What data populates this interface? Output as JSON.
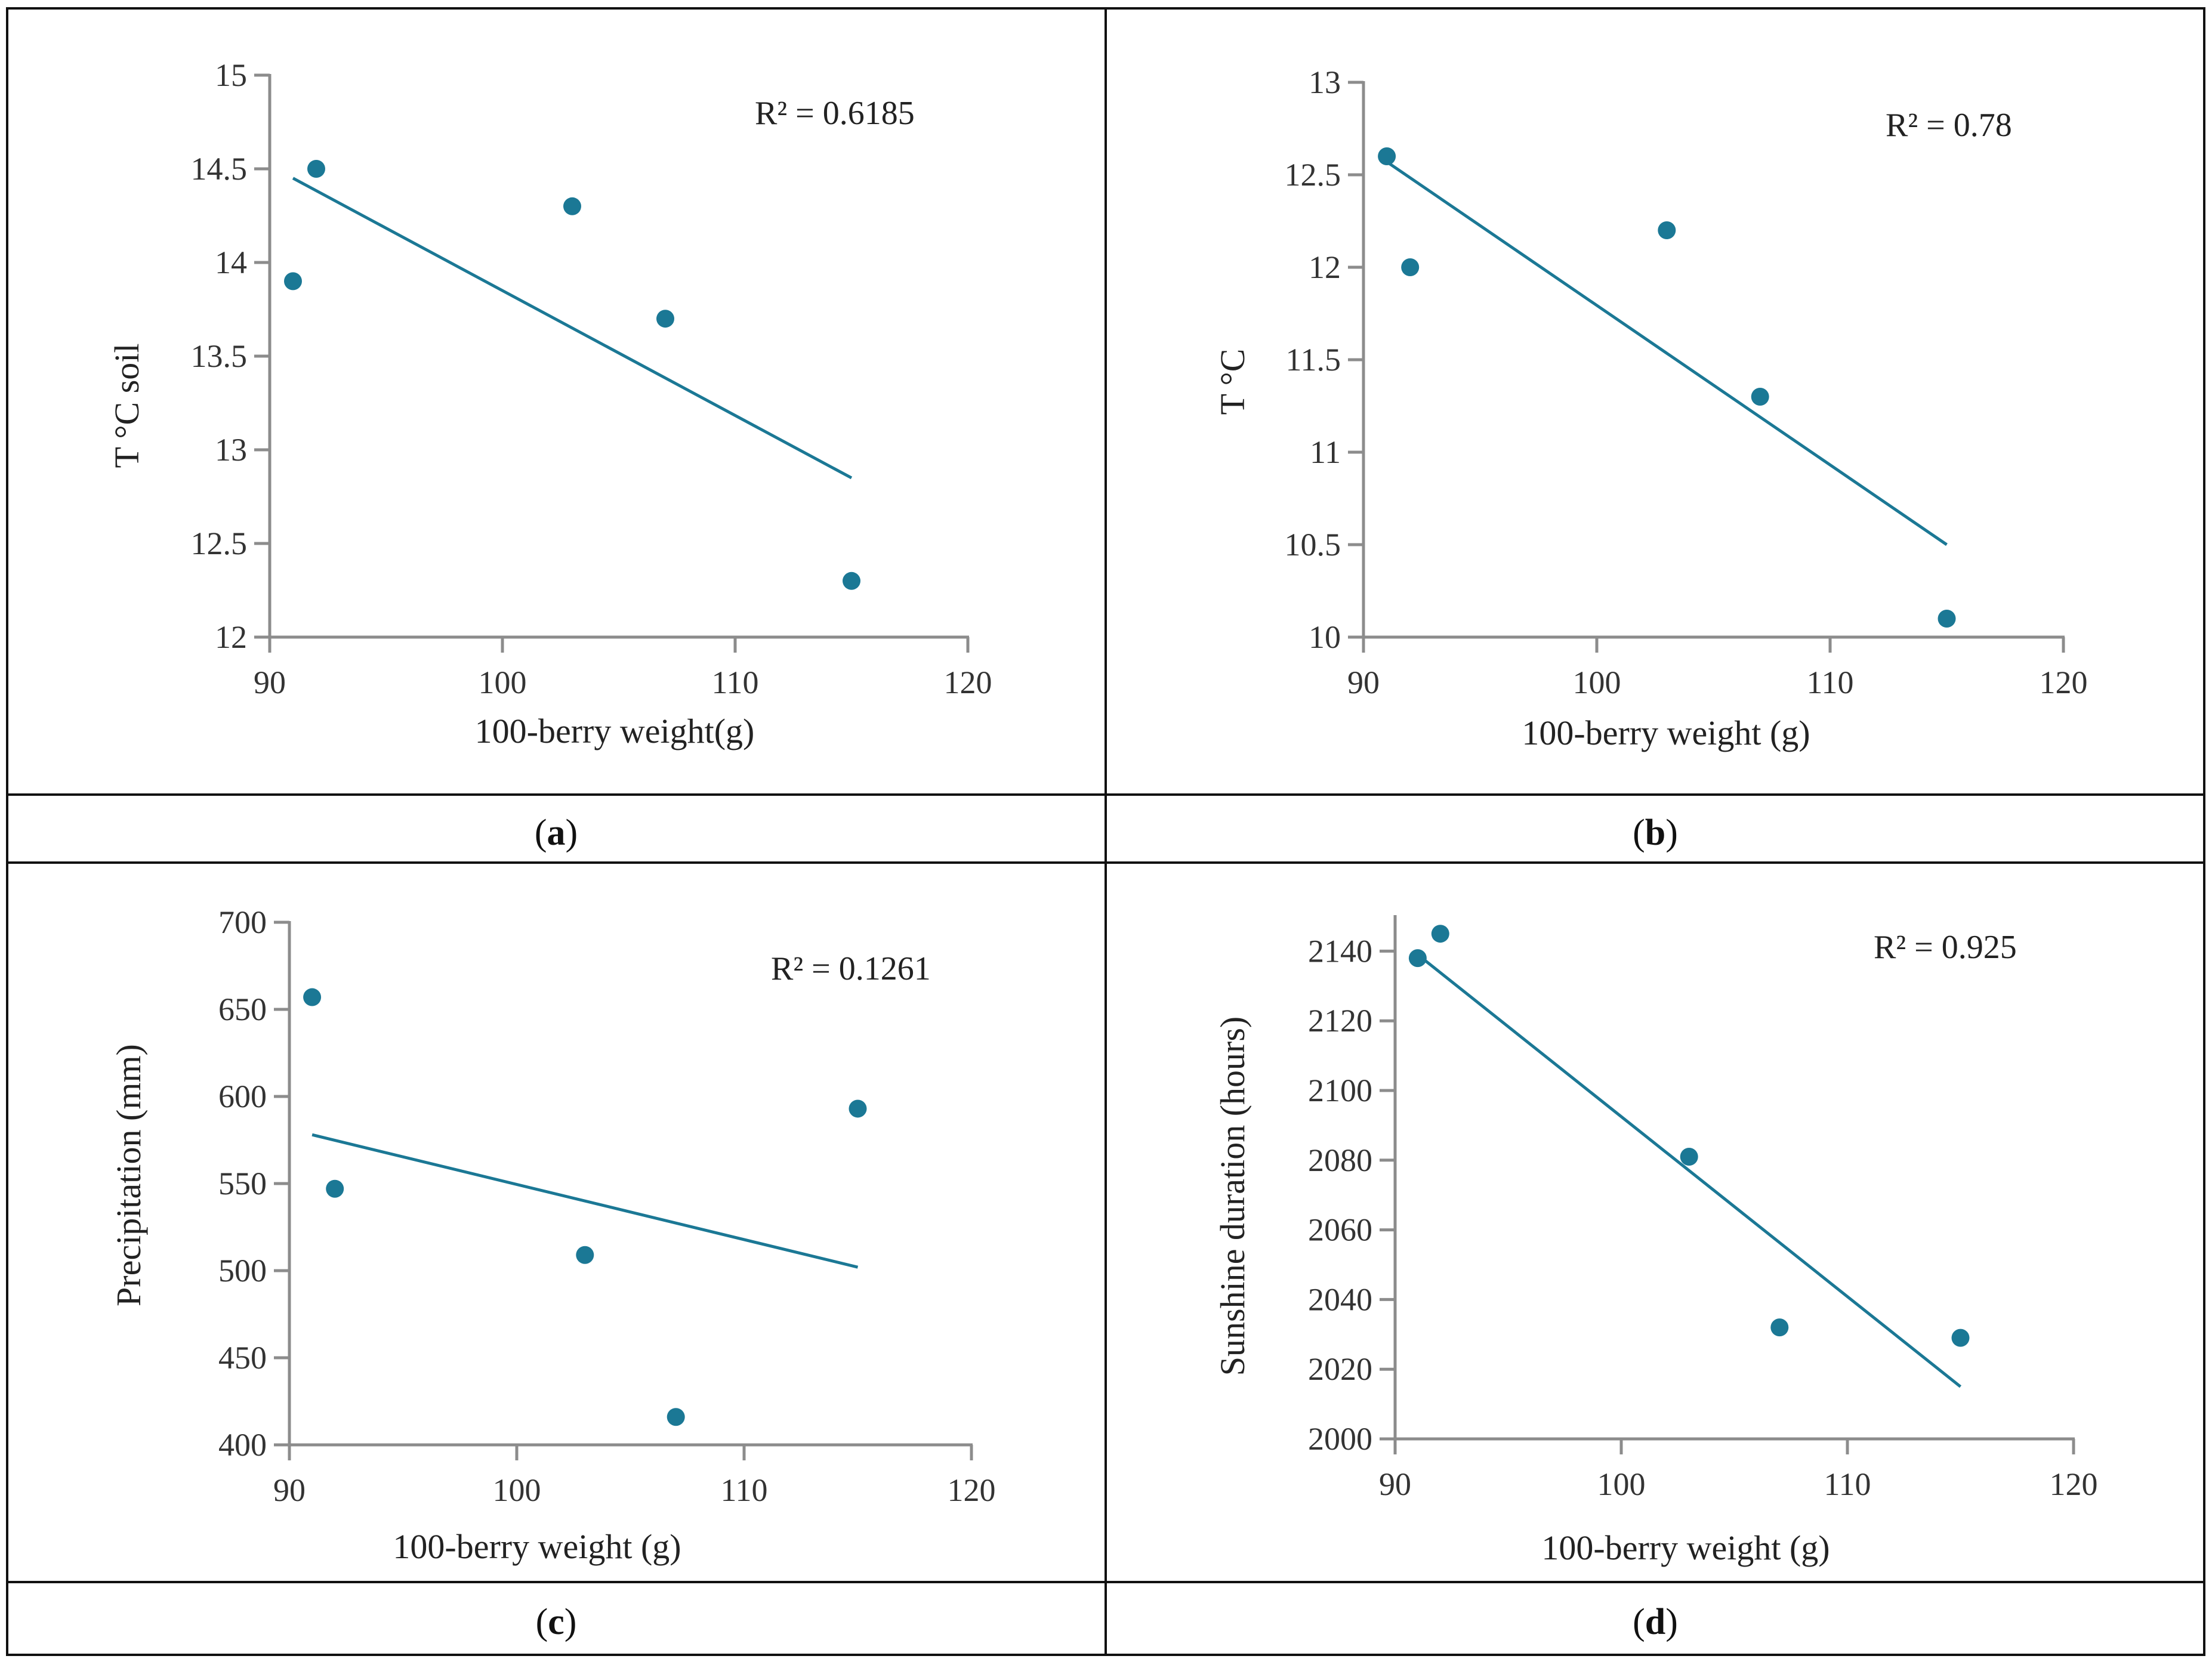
{
  "colors": {
    "series": "#1B7895",
    "axis": "#8C8C8C",
    "frame": "#111111"
  },
  "chart_data": [
    {
      "id": "a",
      "type": "scatter",
      "caption_letter": "a",
      "xlabel": "100-berry weight(g)",
      "ylabel": "T °C soil",
      "xlim": [
        90,
        120
      ],
      "ylim": [
        12,
        15
      ],
      "xticks": [
        90,
        100,
        110,
        120
      ],
      "yticks": [
        12,
        12.5,
        13,
        13.5,
        14,
        14.5,
        15
      ],
      "points": [
        [
          91,
          13.9
        ],
        [
          92,
          14.5
        ],
        [
          103,
          14.3
        ],
        [
          107,
          13.7
        ],
        [
          115,
          12.3
        ]
      ],
      "trendline": [
        [
          91,
          14.45
        ],
        [
          115,
          12.85
        ]
      ],
      "r2_text": "R² = 0.6185"
    },
    {
      "id": "b",
      "type": "scatter",
      "caption_letter": "b",
      "xlabel": "100-berry weight (g)",
      "ylabel": "T °C",
      "xlim": [
        90,
        120
      ],
      "ylim": [
        10,
        13
      ],
      "xticks": [
        90,
        100,
        110,
        120
      ],
      "yticks": [
        10,
        10.5,
        11,
        11.5,
        12,
        12.5,
        13
      ],
      "points": [
        [
          91,
          12.6
        ],
        [
          92,
          12.0
        ],
        [
          103,
          12.2
        ],
        [
          107,
          11.3
        ],
        [
          115,
          10.1
        ]
      ],
      "trendline": [
        [
          91,
          12.57
        ],
        [
          115,
          10.5
        ]
      ],
      "r2_text": "R² = 0.78"
    },
    {
      "id": "c",
      "type": "scatter",
      "caption_letter": "c",
      "xlabel": "100-berry weight (g)",
      "ylabel": "Precipitation (mm)",
      "xlim": [
        90,
        120
      ],
      "ylim": [
        400,
        700
      ],
      "xticks": [
        90,
        100,
        110,
        120
      ],
      "yticks": [
        400,
        450,
        500,
        550,
        600,
        650,
        700
      ],
      "points": [
        [
          91,
          657
        ],
        [
          92,
          547
        ],
        [
          103,
          509
        ],
        [
          107,
          416
        ],
        [
          115,
          593
        ]
      ],
      "trendline": [
        [
          91,
          578
        ],
        [
          115,
          502
        ]
      ],
      "r2_text": "R² = 0.1261"
    },
    {
      "id": "d",
      "type": "scatter",
      "caption_letter": "d",
      "xlabel": "100-berry weight (g)",
      "ylabel": "Sunshine duration (hours)",
      "xlim": [
        90,
        120
      ],
      "ylim": [
        2000,
        2150
      ],
      "xticks": [
        90,
        100,
        110,
        120
      ],
      "yticks": [
        2000,
        2020,
        2040,
        2060,
        2080,
        2100,
        2120,
        2140
      ],
      "points": [
        [
          91,
          2138
        ],
        [
          92,
          2145
        ],
        [
          103,
          2081
        ],
        [
          107,
          2032
        ],
        [
          115,
          2029
        ]
      ],
      "trendline": [
        [
          91,
          2139
        ],
        [
          115,
          2015
        ]
      ],
      "r2_text": "R² = 0.925"
    }
  ]
}
